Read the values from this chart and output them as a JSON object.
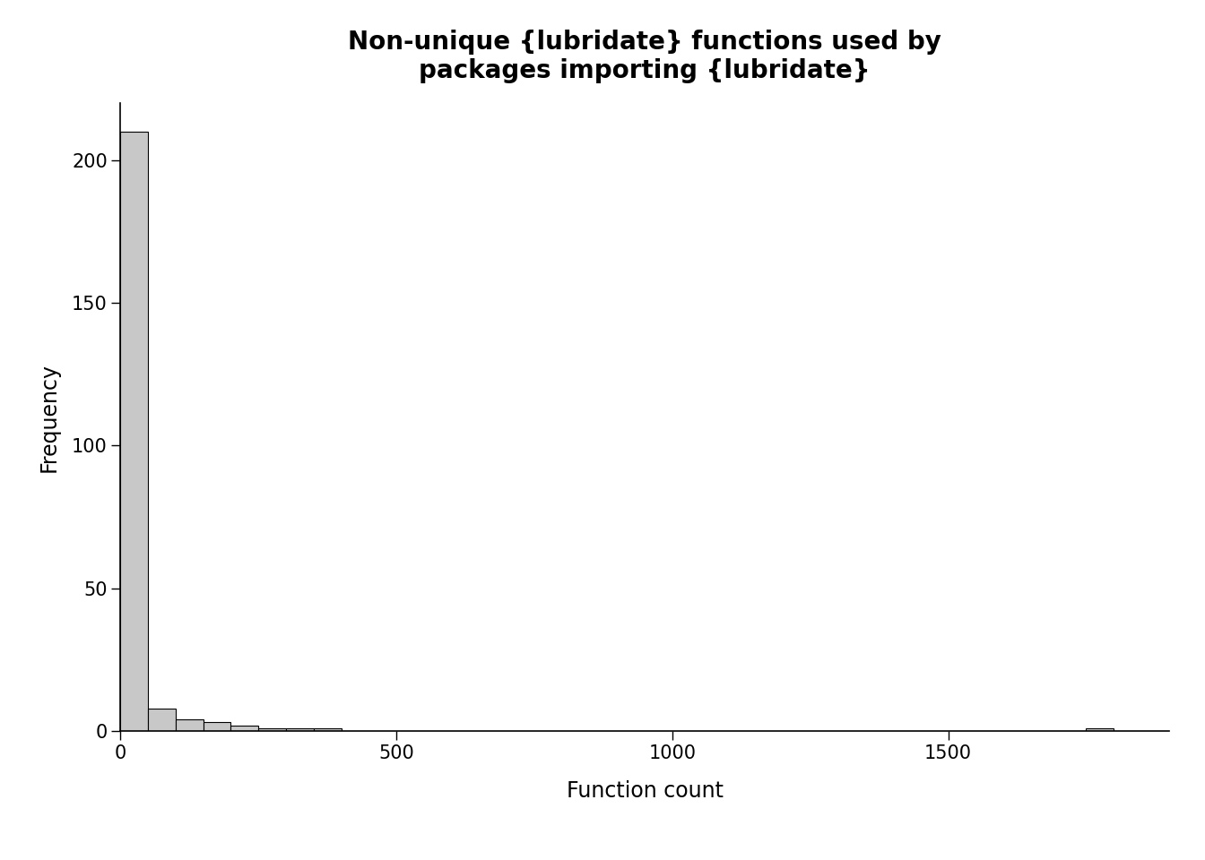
{
  "title": "Non-unique {lubridate} functions used by\npackages importing {lubridate}",
  "xlabel": "Function count",
  "ylabel": "Frequency",
  "bar_color": "#c8c8c8",
  "bar_edge_color": "#000000",
  "background_color": "#ffffff",
  "xlim": [
    0,
    1900
  ],
  "ylim": [
    0,
    220
  ],
  "yticks": [
    0,
    50,
    100,
    150,
    200
  ],
  "xticks": [
    0,
    500,
    1000,
    1500
  ],
  "title_fontsize": 20,
  "label_fontsize": 17,
  "tick_fontsize": 15,
  "hist_counts": [
    210,
    8,
    4,
    3,
    2,
    1,
    1,
    1,
    0,
    0,
    0,
    0,
    0,
    0,
    0,
    0,
    0,
    0,
    0,
    0,
    0,
    0,
    0,
    0,
    0,
    0,
    0,
    0,
    0,
    0,
    0,
    0,
    0,
    0,
    0,
    1
  ],
  "hist_bin_edges": [
    0,
    50,
    100,
    150,
    200,
    250,
    300,
    350,
    400,
    450,
    500,
    550,
    600,
    650,
    700,
    750,
    800,
    850,
    900,
    950,
    1000,
    1050,
    1100,
    1150,
    1200,
    1250,
    1300,
    1350,
    1400,
    1450,
    1500,
    1550,
    1600,
    1650,
    1700,
    1750,
    1800
  ]
}
